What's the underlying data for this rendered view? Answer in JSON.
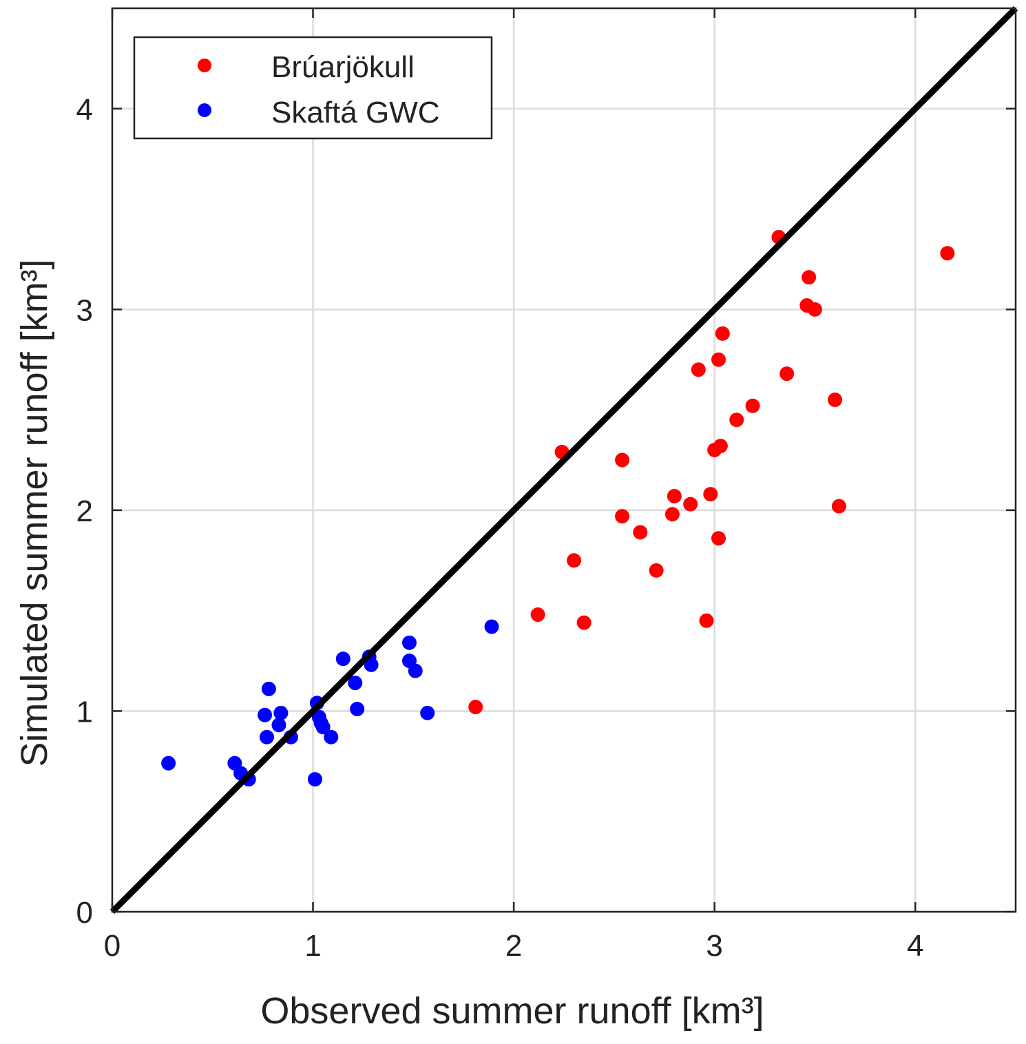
{
  "chart_data": {
    "type": "scatter",
    "title": "",
    "xlabel": "Observed summer runoff [km³]",
    "ylabel": "Simulated summer runoff [km³]",
    "xlim": [
      0,
      4.5
    ],
    "ylim": [
      0,
      4.5
    ],
    "xticks": [
      0,
      1,
      2,
      3,
      4
    ],
    "yticks": [
      0,
      1,
      2,
      3,
      4
    ],
    "xtick_labels": [
      "0",
      "1",
      "2",
      "3",
      "4"
    ],
    "ytick_labels": [
      "0",
      "1",
      "2",
      "3",
      "4"
    ],
    "grid": true,
    "legend_position": "top-left",
    "reference_line": {
      "name": "1:1 line",
      "from": [
        0,
        0
      ],
      "to": [
        4.5,
        4.5
      ],
      "color": "#000000"
    },
    "series": [
      {
        "name": "Brúarjökull",
        "color": "#ff0000",
        "points": [
          [
            1.81,
            1.02
          ],
          [
            2.12,
            1.48
          ],
          [
            2.24,
            2.29
          ],
          [
            2.3,
            1.75
          ],
          [
            2.35,
            1.44
          ],
          [
            2.54,
            2.25
          ],
          [
            2.54,
            1.97
          ],
          [
            2.63,
            1.89
          ],
          [
            2.71,
            1.7
          ],
          [
            2.79,
            1.98
          ],
          [
            2.8,
            2.07
          ],
          [
            2.88,
            2.03
          ],
          [
            2.92,
            2.7
          ],
          [
            2.96,
            1.45
          ],
          [
            2.98,
            2.08
          ],
          [
            3.0,
            2.3
          ],
          [
            3.02,
            1.86
          ],
          [
            3.02,
            2.75
          ],
          [
            3.03,
            2.32
          ],
          [
            3.04,
            2.88
          ],
          [
            3.11,
            2.45
          ],
          [
            3.19,
            2.52
          ],
          [
            3.32,
            3.36
          ],
          [
            3.36,
            2.68
          ],
          [
            3.46,
            3.02
          ],
          [
            3.47,
            3.16
          ],
          [
            3.5,
            3.0
          ],
          [
            3.6,
            2.55
          ],
          [
            3.62,
            2.02
          ],
          [
            4.16,
            3.28
          ]
        ]
      },
      {
        "name": "Skaftá GWC",
        "color": "#0000ff",
        "points": [
          [
            0.28,
            0.74
          ],
          [
            0.61,
            0.74
          ],
          [
            0.64,
            0.69
          ],
          [
            0.68,
            0.66
          ],
          [
            0.76,
            0.98
          ],
          [
            0.77,
            0.87
          ],
          [
            0.78,
            1.11
          ],
          [
            0.83,
            0.93
          ],
          [
            0.84,
            0.99
          ],
          [
            0.89,
            0.87
          ],
          [
            1.01,
            0.66
          ],
          [
            1.02,
            1.04
          ],
          [
            1.03,
            0.97
          ],
          [
            1.04,
            0.94
          ],
          [
            1.05,
            0.92
          ],
          [
            1.09,
            0.87
          ],
          [
            1.15,
            1.26
          ],
          [
            1.21,
            1.14
          ],
          [
            1.22,
            1.01
          ],
          [
            1.28,
            1.27
          ],
          [
            1.29,
            1.23
          ],
          [
            1.48,
            1.34
          ],
          [
            1.48,
            1.25
          ],
          [
            1.51,
            1.2
          ],
          [
            1.57,
            0.99
          ],
          [
            1.89,
            1.42
          ]
        ]
      }
    ]
  }
}
